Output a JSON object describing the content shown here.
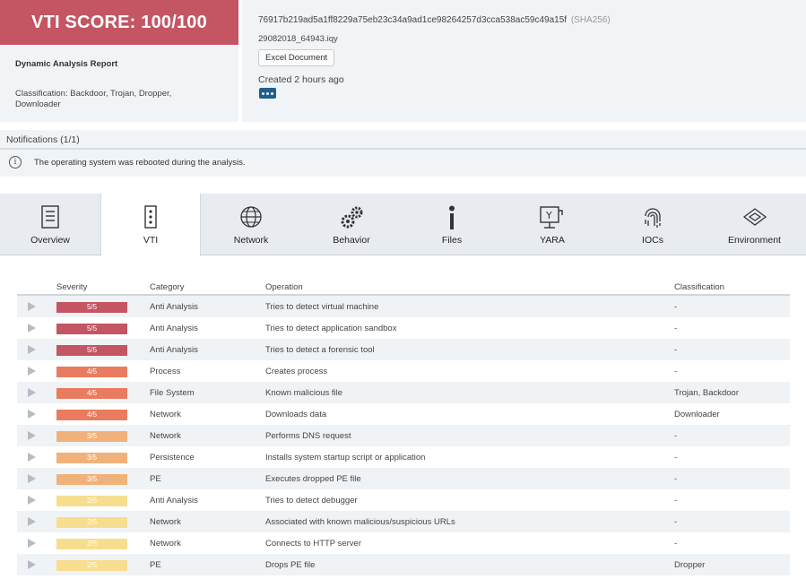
{
  "header": {
    "score": "VTI SCORE: 100/100",
    "report_title": "Dynamic Analysis Report",
    "classification": "Classification: Backdoor, Trojan, Dropper, Downloader",
    "hash": "76917b219ad5a1ff8229a75eb23c34a9ad1ce98264257d3cca538ac59c49a15f",
    "hash_type": "(SHA256)",
    "filename": "29082018_64943.iqy",
    "doc_type": "Excel Document",
    "created": "Created 2 hours ago",
    "score_color": "#c45563"
  },
  "notifications": {
    "heading": "Notifications (1/1)",
    "message": "The operating system was rebooted during the analysis."
  },
  "tabs": [
    {
      "label": "Overview",
      "icon": "document-icon"
    },
    {
      "label": "VTI",
      "icon": "vti-icon",
      "active": true
    },
    {
      "label": "Network",
      "icon": "globe-icon"
    },
    {
      "label": "Behavior",
      "icon": "gears-icon"
    },
    {
      "label": "Files",
      "icon": "info-i-icon"
    },
    {
      "label": "YARA",
      "icon": "yara-icon"
    },
    {
      "label": "IOCs",
      "icon": "fingerprint-icon"
    },
    {
      "label": "Environment",
      "icon": "cube-icon"
    }
  ],
  "table": {
    "headers": {
      "severity": "Severity",
      "category": "Category",
      "operation": "Operation",
      "classification": "Classification"
    },
    "severity_colors": {
      "5": "#c45563",
      "4": "#e97b5f",
      "3": "#f0b27a",
      "2": "#f7de8e"
    },
    "rows": [
      {
        "severity": "5/5",
        "category": "Anti Analysis",
        "operation": "Tries to detect virtual machine",
        "classification": "-"
      },
      {
        "severity": "5/5",
        "category": "Anti Analysis",
        "operation": "Tries to detect application sandbox",
        "classification": "-"
      },
      {
        "severity": "5/5",
        "category": "Anti Analysis",
        "operation": "Tries to detect a forensic tool",
        "classification": "-"
      },
      {
        "severity": "4/5",
        "category": "Process",
        "operation": "Creates process",
        "classification": "-"
      },
      {
        "severity": "4/5",
        "category": "File System",
        "operation": "Known malicious file",
        "classification": "Trojan, Backdoor"
      },
      {
        "severity": "4/5",
        "category": "Network",
        "operation": "Downloads data",
        "classification": "Downloader"
      },
      {
        "severity": "3/5",
        "category": "Network",
        "operation": "Performs DNS request",
        "classification": "-"
      },
      {
        "severity": "3/5",
        "category": "Persistence",
        "operation": "Installs system startup script or application",
        "classification": "-"
      },
      {
        "severity": "3/5",
        "category": "PE",
        "operation": "Executes dropped PE file",
        "classification": "-"
      },
      {
        "severity": "2/5",
        "category": "Anti Analysis",
        "operation": "Tries to detect debugger",
        "classification": "-"
      },
      {
        "severity": "2/5",
        "category": "Network",
        "operation": "Associated with known malicious/suspicious URLs",
        "classification": "-"
      },
      {
        "severity": "2/5",
        "category": "Network",
        "operation": "Connects to HTTP server",
        "classification": "-"
      },
      {
        "severity": "2/5",
        "category": "PE",
        "operation": "Drops PE file",
        "classification": "Dropper"
      }
    ]
  }
}
